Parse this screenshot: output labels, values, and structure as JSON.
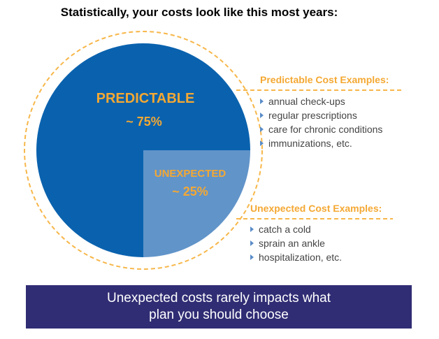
{
  "title": "Statistically, your costs look like this most years:",
  "chart_data": {
    "type": "pie",
    "slices": [
      {
        "label": "PREDICTABLE",
        "display_value": "~ 75%",
        "value": 75,
        "color": "#0a62ae"
      },
      {
        "label": "UNEXPECTED",
        "display_value": "~ 25%",
        "value": 25,
        "color": "#6194c9"
      }
    ],
    "label_color": "#f4a833",
    "annotations": [
      {
        "heading": "Predictable Cost Examples:",
        "items": [
          "annual check-ups",
          "regular prescriptions",
          "care for chronic conditions",
          "immunizations, etc."
        ]
      },
      {
        "heading": "Unexpected Cost Examples:",
        "items": [
          "catch a cold",
          "sprain an ankle",
          "hospitalization, etc."
        ]
      }
    ]
  },
  "banner": {
    "line1": "Unexpected costs rarely impacts what",
    "line2": "plan you should choose",
    "color": "#302d74"
  },
  "colors": {
    "accent": "#f4a833",
    "dash": "#f7b74a",
    "bullet": "#5a8cc8"
  }
}
